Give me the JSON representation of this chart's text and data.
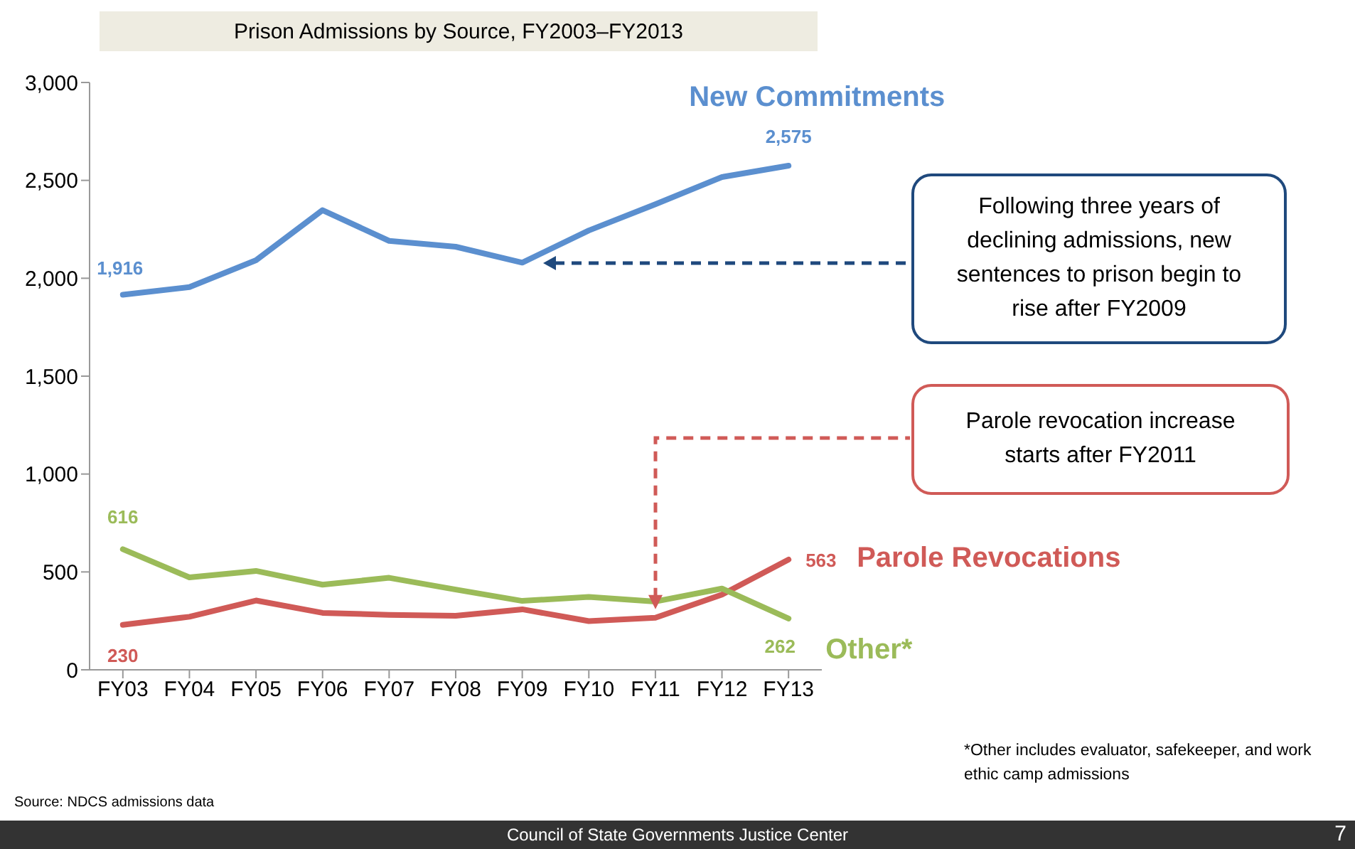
{
  "chart_data": {
    "type": "line",
    "title": "Prison Admissions by Source, FY2003–FY2013",
    "categories": [
      "FY03",
      "FY04",
      "FY05",
      "FY06",
      "FY07",
      "FY08",
      "FY09",
      "FY10",
      "FY11",
      "FY12",
      "FY13"
    ],
    "series": [
      {
        "name": "New Commitments",
        "color": "#5b8fcf",
        "values": [
          1916,
          1955,
          2092,
          2348,
          2191,
          2161,
          2080,
          2244,
          2378,
          2517,
          2575
        ],
        "value_labels": [
          "1,916",
          null,
          null,
          null,
          null,
          null,
          null,
          null,
          null,
          null,
          "2,575"
        ]
      },
      {
        "name": "Parole Revocations",
        "color": "#d05a57",
        "values": [
          230,
          271,
          354,
          291,
          281,
          276,
          309,
          249,
          266,
          384,
          563
        ],
        "value_labels": [
          "230",
          null,
          null,
          null,
          null,
          null,
          null,
          null,
          null,
          null,
          "563"
        ]
      },
      {
        "name": "Other*",
        "color": "#9bbb59",
        "values": [
          616,
          472,
          505,
          435,
          470,
          410,
          352,
          372,
          349,
          415,
          262
        ],
        "value_labels": [
          "616",
          null,
          null,
          null,
          null,
          null,
          null,
          null,
          null,
          null,
          "262"
        ]
      }
    ],
    "ylim": [
      0,
      3000
    ],
    "yticks": [
      0,
      500,
      {
        "value": 1000,
        "label": "1,000"
      },
      {
        "value": 1500,
        "label": "1,500"
      },
      {
        "value": 2000,
        "label": "2,000"
      },
      {
        "value": 2500,
        "label": "2,500"
      },
      {
        "value": 3000,
        "label": "3,000"
      }
    ],
    "grid": false,
    "legend": false,
    "marker": "none",
    "line_style": "solid",
    "annotations": [
      "Following three years of declining admissions, new sentences to prison begin to rise after FY2009",
      "Parole revocation increase starts after FY2011",
      "*Other includes evaluator, safekeeper, and work ethic camp admissions",
      "Source:  NDCS admissions data",
      "Council of State Governments Justice Center",
      "7"
    ]
  }
}
